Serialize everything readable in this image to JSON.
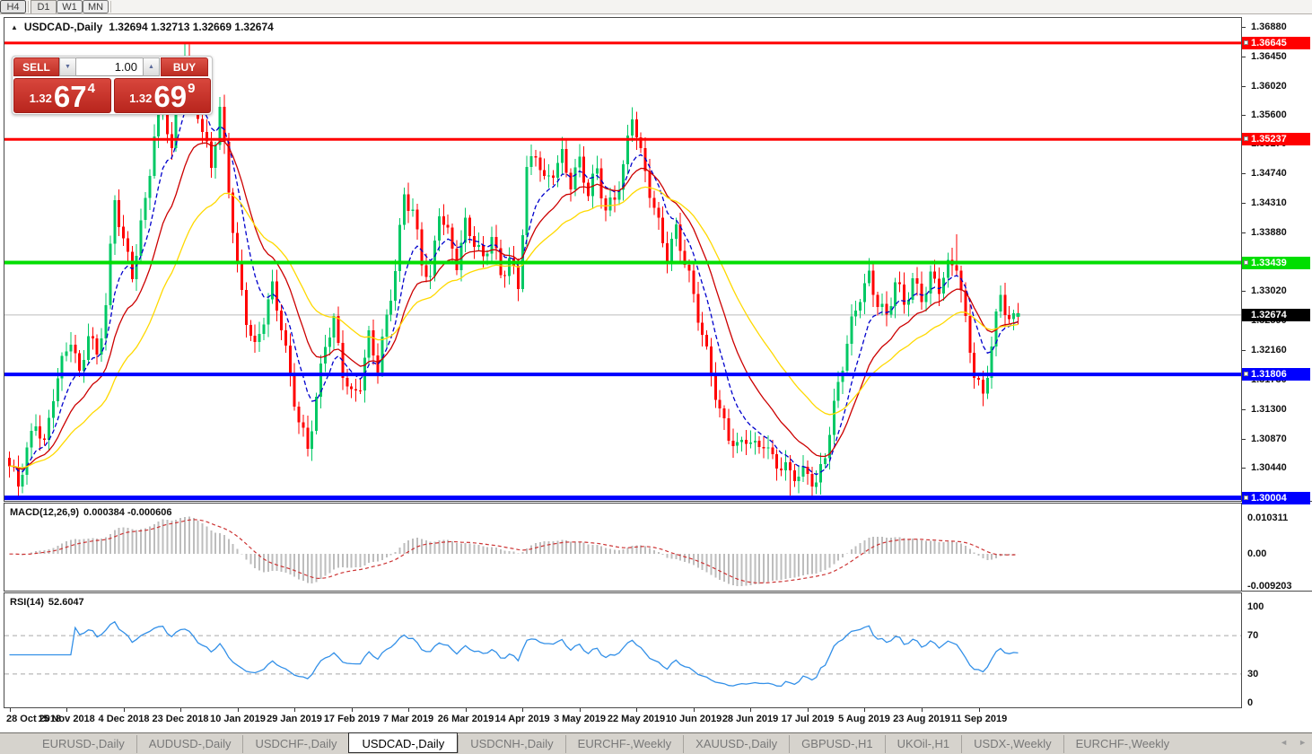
{
  "toolbar": {
    "timeframes": [
      {
        "label": "H4",
        "active": false
      },
      {
        "label": "D1",
        "active": true
      },
      {
        "label": "W1",
        "active": false
      },
      {
        "label": "MN",
        "active": false
      }
    ]
  },
  "chart": {
    "title_symbol": "USDCAD-,Daily",
    "title_ohlc": "1.32694 1.32713 1.32669 1.32674",
    "collapse_icon": "▲",
    "trade_panel": {
      "sell_label": "SELL",
      "buy_label": "BUY",
      "volume": "1.00",
      "spin_down_icon": "▼",
      "spin_up_icon": "▲",
      "sell_price_prefix": "1.32",
      "sell_price_big": "67",
      "sell_price_sup": "4",
      "buy_price_prefix": "1.32",
      "buy_price_big": "69",
      "buy_price_sup": "9"
    },
    "colors": {
      "candle_up": "#00c864",
      "candle_down": "#ff0000",
      "ma_fast": "#0000cc",
      "ma_mid": "#cc0000",
      "ma_slow": "#ffd900",
      "current_line": "#bcbcbc",
      "macd_hist": "#bdbdbd",
      "macd_signal": "#cc3333",
      "rsi_line": "#3390e8",
      "rsi_level": "#a8a8a8"
    }
  },
  "chart_data": {
    "type": "candlestick",
    "symbol": "USDCAD",
    "period": "Daily",
    "n": 231,
    "candles_per_label": 13,
    "y_range": [
      1.2996,
      1.3701
    ],
    "price_anchors": [
      [
        0,
        1.304
      ],
      [
        2,
        1.3015
      ],
      [
        4,
        1.307
      ],
      [
        6,
        1.312
      ],
      [
        8,
        1.308
      ],
      [
        10,
        1.315
      ],
      [
        12,
        1.319
      ],
      [
        14,
        1.323
      ],
      [
        16,
        1.318
      ],
      [
        18,
        1.325
      ],
      [
        20,
        1.321
      ],
      [
        22,
        1.328
      ],
      [
        24,
        1.343
      ],
      [
        26,
        1.337
      ],
      [
        28,
        1.333
      ],
      [
        31,
        1.344
      ],
      [
        33,
        1.353
      ],
      [
        35,
        1.357
      ],
      [
        37,
        1.35
      ],
      [
        39,
        1.364
      ],
      [
        40,
        1.3655
      ],
      [
        42,
        1.36
      ],
      [
        44,
        1.354
      ],
      [
        46,
        1.348
      ],
      [
        48,
        1.356
      ],
      [
        50,
        1.345
      ],
      [
        52,
        1.334
      ],
      [
        54,
        1.327
      ],
      [
        56,
        1.322
      ],
      [
        58,
        1.326
      ],
      [
        60,
        1.33
      ],
      [
        62,
        1.325
      ],
      [
        64,
        1.318
      ],
      [
        66,
        1.312
      ],
      [
        68,
        1.3075
      ],
      [
        70,
        1.314
      ],
      [
        72,
        1.322
      ],
      [
        74,
        1.3255
      ],
      [
        76,
        1.319
      ],
      [
        78,
        1.3155
      ],
      [
        80,
        1.317
      ],
      [
        82,
        1.323
      ],
      [
        84,
        1.3185
      ],
      [
        86,
        1.326
      ],
      [
        88,
        1.334
      ],
      [
        90,
        1.345
      ],
      [
        92,
        1.342
      ],
      [
        94,
        1.334
      ],
      [
        96,
        1.331
      ],
      [
        98,
        1.342
      ],
      [
        100,
        1.339
      ],
      [
        102,
        1.335
      ],
      [
        104,
        1.34
      ],
      [
        106,
        1.337
      ],
      [
        108,
        1.334
      ],
      [
        110,
        1.3385
      ],
      [
        112,
        1.333
      ],
      [
        114,
        1.3355
      ],
      [
        116,
        1.331
      ],
      [
        118,
        1.347
      ],
      [
        120,
        1.35
      ],
      [
        122,
        1.346
      ],
      [
        124,
        1.3485
      ],
      [
        126,
        1.3505
      ],
      [
        128,
        1.346
      ],
      [
        130,
        1.3485
      ],
      [
        132,
        1.344
      ],
      [
        134,
        1.348
      ],
      [
        136,
        1.3425
      ],
      [
        138,
        1.3445
      ],
      [
        140,
        1.348
      ],
      [
        142,
        1.3555
      ],
      [
        144,
        1.3495
      ],
      [
        146,
        1.345
      ],
      [
        148,
        1.3405
      ],
      [
        150,
        1.336
      ],
      [
        152,
        1.339
      ],
      [
        154,
        1.334
      ],
      [
        156,
        1.329
      ],
      [
        158,
        1.324
      ],
      [
        160,
        1.319
      ],
      [
        162,
        1.313
      ],
      [
        164,
        1.309
      ],
      [
        166,
        1.3065
      ],
      [
        168,
        1.3085
      ],
      [
        170,
        1.3075
      ],
      [
        172,
        1.309
      ],
      [
        174,
        1.306
      ],
      [
        176,
        1.3045
      ],
      [
        178,
        1.303
      ],
      [
        180,
        1.3028
      ],
      [
        182,
        1.304
      ],
      [
        184,
        1.3025
      ],
      [
        186,
        1.307
      ],
      [
        188,
        1.313
      ],
      [
        190,
        1.319
      ],
      [
        192,
        1.325
      ],
      [
        194,
        1.33
      ],
      [
        196,
        1.333
      ],
      [
        198,
        1.329
      ],
      [
        200,
        1.326
      ],
      [
        202,
        1.331
      ],
      [
        204,
        1.328
      ],
      [
        206,
        1.332
      ],
      [
        208,
        1.33
      ],
      [
        210,
        1.3325
      ],
      [
        212,
        1.3305
      ],
      [
        214,
        1.333
      ],
      [
        216,
        1.334
      ],
      [
        218,
        1.326
      ],
      [
        220,
        1.319
      ],
      [
        222,
        1.315
      ],
      [
        224,
        1.322
      ],
      [
        226,
        1.329
      ],
      [
        228,
        1.3255
      ],
      [
        230,
        1.3267
      ]
    ],
    "wick_overrides": [
      [
        40,
        1.36645
      ],
      [
        216,
        1.3385
      ]
    ],
    "low_overrides": [
      [
        178,
        1.3004
      ],
      [
        184,
        1.3006
      ]
    ],
    "x_labels": [
      "28 Oct 2018",
      "15 Nov 2018",
      "4 Dec 2018",
      "23 Dec 2018",
      "10 Jan 2019",
      "29 Jan 2019",
      "17 Feb 2019",
      "7 Mar 2019",
      "26 Mar 2019",
      "14 Apr 2019",
      "3 May 2019",
      "22 May 2019",
      "10 Jun 2019",
      "28 Jun 2019",
      "17 Jul 2019",
      "5 Aug 2019",
      "23 Aug 2019",
      "11 Sep 2019"
    ],
    "y_ticks": [
      "1.36880",
      "1.36450",
      "1.36020",
      "1.35600",
      "1.35170",
      "1.34740",
      "1.34310",
      "1.33880",
      "1.33450",
      "1.33020",
      "1.32590",
      "1.32160",
      "1.31730",
      "1.31300",
      "1.30870",
      "1.30440",
      "1.30010"
    ],
    "levels": [
      {
        "price": 1.36645,
        "label": "1.36645",
        "color": "#ff0000",
        "width": 3
      },
      {
        "price": 1.35237,
        "label": "1.35237",
        "color": "#ff0000",
        "width": 3
      },
      {
        "price": 1.33439,
        "label": "1.33439",
        "color": "#00de00",
        "width": 4
      },
      {
        "price": 1.31806,
        "label": "1.31806",
        "color": "#0000ff",
        "width": 4
      },
      {
        "price": 1.30004,
        "label": "1.30004",
        "color": "#0000ff",
        "width": 5
      }
    ],
    "current_price": {
      "value": 1.32674,
      "label": "1.32674"
    },
    "overlays": [
      {
        "name": "ema-fast",
        "period": 8,
        "dash": true
      },
      {
        "name": "ema-mid",
        "period": 17,
        "dash": false
      },
      {
        "name": "ema-slow",
        "period": 34,
        "dash": false
      }
    ],
    "indicators": {
      "macd": {
        "name": "MACD(12,26,9)",
        "values": "0.000384 -0.000606",
        "fast": 12,
        "slow": 26,
        "signal": 9,
        "axis_top": "0.010311",
        "axis_zero": "0.00",
        "axis_bottom": "-0.009203"
      },
      "rsi": {
        "name": "RSI(14)",
        "value": "52.6047",
        "period": 14,
        "axis": [
          "100",
          "70",
          "30",
          "0"
        ],
        "levels": [
          70,
          30
        ]
      }
    }
  },
  "tabs": {
    "items": [
      {
        "label": "EURUSD-,Daily",
        "active": false
      },
      {
        "label": "AUDUSD-,Daily",
        "active": false
      },
      {
        "label": "USDCHF-,Daily",
        "active": false
      },
      {
        "label": "USDCAD-,Daily",
        "active": true
      },
      {
        "label": "USDCNH-,Daily",
        "active": false
      },
      {
        "label": "EURCHF-,Weekly",
        "active": false
      },
      {
        "label": "XAUUSD-,Daily",
        "active": false
      },
      {
        "label": "GBPUSD-,H1",
        "active": false
      },
      {
        "label": "UKOil-,H1",
        "active": false
      },
      {
        "label": "USDX-,Weekly",
        "active": false
      },
      {
        "label": "EURCHF-,Weekly",
        "active": false
      }
    ],
    "scroll_left_icon": "◄",
    "scroll_right_icon": "►"
  }
}
